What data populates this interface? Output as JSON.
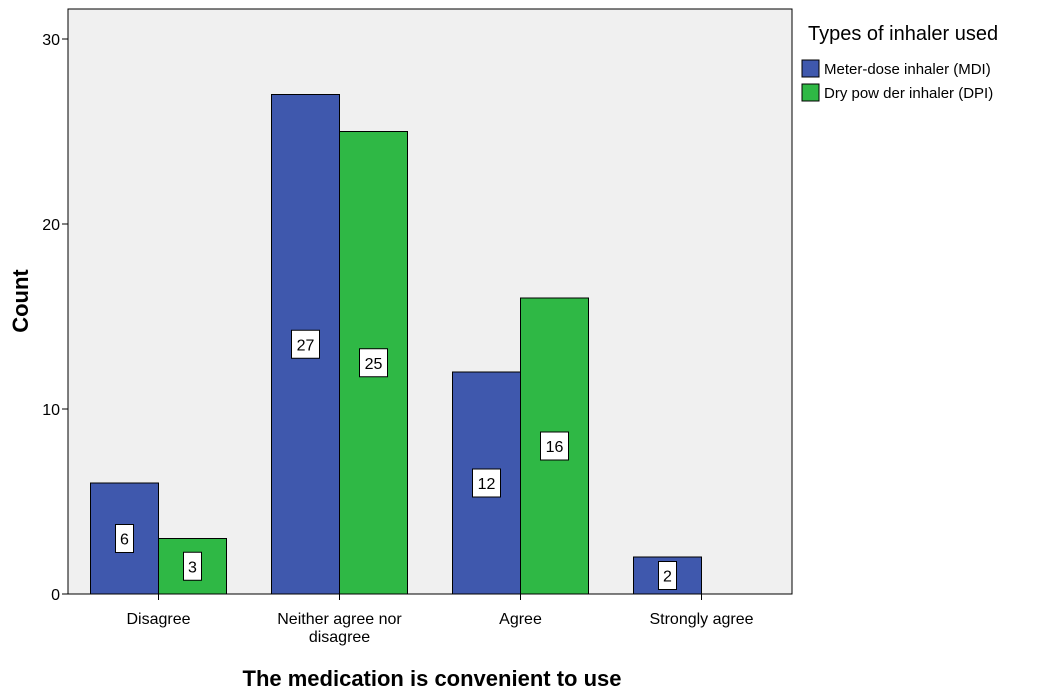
{
  "chart_data": {
    "type": "bar",
    "categories": [
      "Disagree",
      "Neither agree nor disagree",
      "Agree",
      "Strongly agree"
    ],
    "category_lines": [
      [
        "Disagree"
      ],
      [
        "Neither agree nor",
        "disagree"
      ],
      [
        "Agree"
      ],
      [
        "Strongly agree"
      ]
    ],
    "series": [
      {
        "name": "Meter-dose inhaler (MDI)",
        "values": [
          6,
          27,
          12,
          2
        ],
        "color": "#3f58ad"
      },
      {
        "name": "Dry pow der inhaler (DPI)",
        "values": [
          3,
          25,
          16,
          null
        ],
        "color": "#2fb845"
      }
    ],
    "xlabel": "The medication is convenient to use",
    "ylabel": "Count",
    "ylim": [
      0,
      30
    ],
    "yticks": [
      0,
      10,
      20,
      30
    ],
    "legend_title": "Types of inhaler used",
    "legend_position": "top-right",
    "plot_background": "#f0f0f0",
    "grid": false
  }
}
